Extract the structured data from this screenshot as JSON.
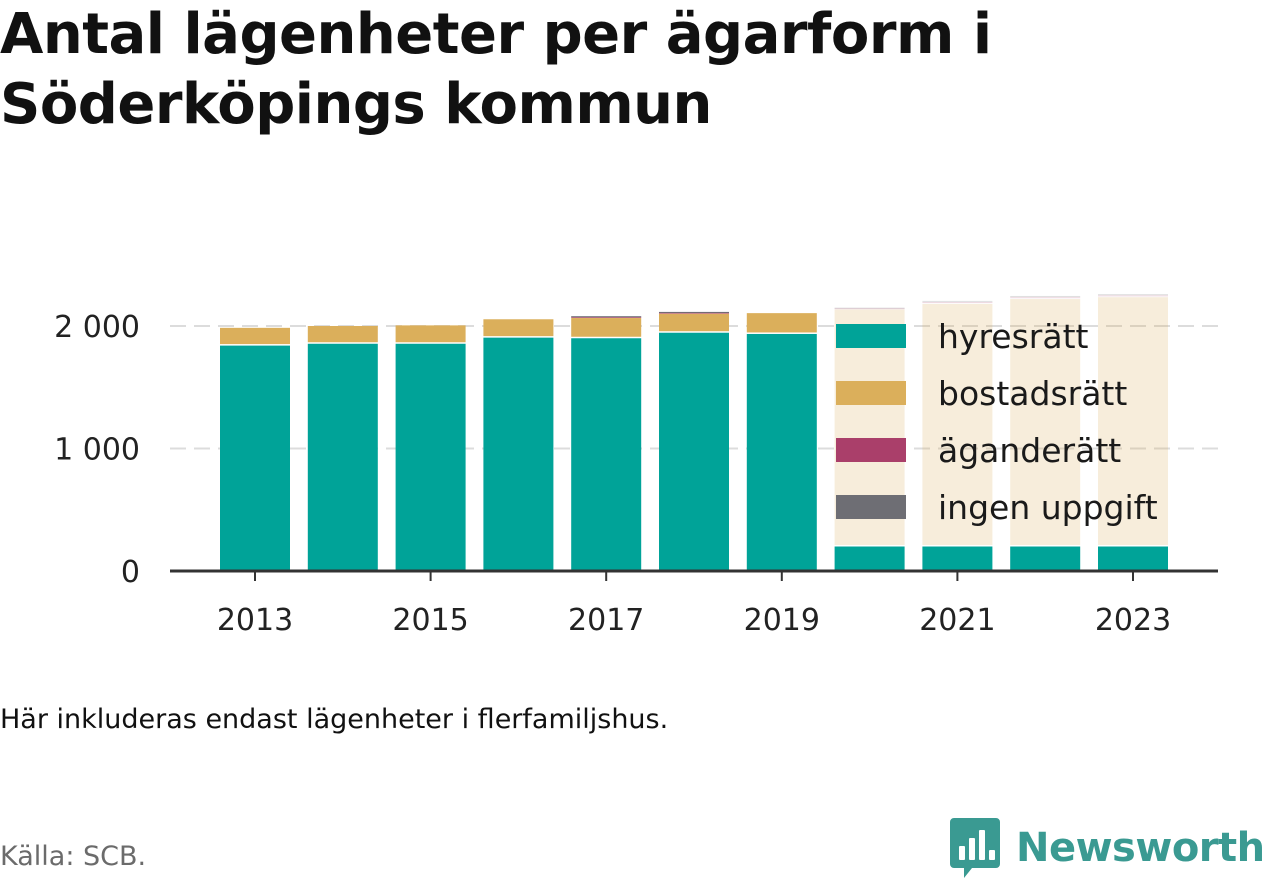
{
  "title": "Antal lägenheter per ägarform i Söderköpings kommun",
  "note": "Här inkluderas endast lägenheter i flerfamiljshus.",
  "source": "Källa: SCB.",
  "brand": {
    "name": "Newsworthy",
    "icon": "bar-chart-logo-icon",
    "color": "#3a9a92"
  },
  "chart_data": {
    "type": "bar",
    "stacked": true,
    "categories": [
      "2013",
      "2014",
      "2015",
      "2016",
      "2017",
      "2018",
      "2019",
      "2020",
      "2021",
      "2022",
      "2023"
    ],
    "x_tick_labels": [
      "2013",
      "2015",
      "2017",
      "2019",
      "2021",
      "2023"
    ],
    "y_tick_labels": [
      "0",
      "1 000",
      "2 000"
    ],
    "y_ticks": [
      0,
      1000,
      2000
    ],
    "ylim": [
      0,
      2300
    ],
    "grid": true,
    "legend_position": "right-inside",
    "series": [
      {
        "name": "hyresrätt",
        "color": "#00a398",
        "values": [
          1840,
          1855,
          1855,
          1905,
          1900,
          1945,
          1935,
          200,
          200,
          200,
          200
        ]
      },
      {
        "name": "bostadsrätt",
        "color": "#dbaf5b",
        "values": [
          145,
          145,
          150,
          150,
          165,
          155,
          170,
          1935,
          1980,
          2020,
          2035
        ]
      },
      {
        "name": "äganderätt",
        "color": "#aa3f6a",
        "values": [
          0,
          0,
          0,
          0,
          10,
          10,
          0,
          10,
          15,
          15,
          15
        ]
      },
      {
        "name": "ingen uppgift",
        "color": "#6e6e74",
        "values": [
          0,
          0,
          0,
          0,
          5,
          5,
          0,
          5,
          10,
          10,
          10
        ]
      }
    ]
  }
}
